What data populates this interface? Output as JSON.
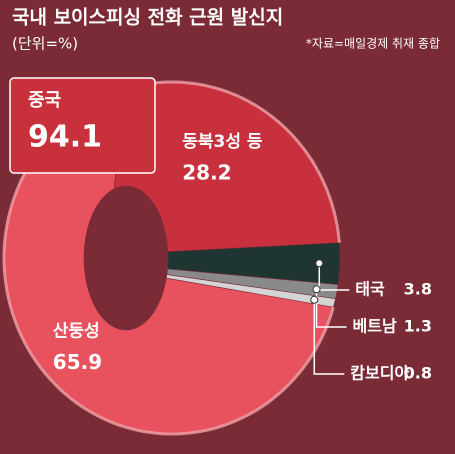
{
  "chart_data": {
    "type": "pie",
    "title": "국내 보이스피싱 전화 근원 발신지",
    "subtitle": "(단위=%)",
    "source": "*자료=매일경제 취재 종합",
    "categories": [
      "산둥성",
      "동북3성 등",
      "태국",
      "베트남",
      "캄보디아"
    ],
    "values": [
      65.9,
      28.2,
      3.8,
      1.3,
      0.8
    ],
    "colors": [
      "#e8525e",
      "#c9303e",
      "#1f3532",
      "#8a8a8a",
      "#d4d4d4"
    ],
    "group": {
      "name": "중국",
      "value": 94.1,
      "color": "#c8303c"
    }
  }
}
